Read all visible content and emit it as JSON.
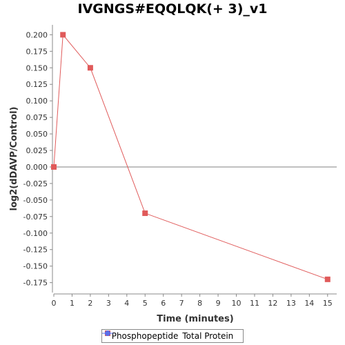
{
  "chart_data": {
    "type": "line",
    "title": "IVGNGS#EQQLQK(+ 3)_v1",
    "xlabel": "Time (minutes)",
    "ylabel": "log2(dDAVP/Control)",
    "xlim": [
      0,
      15.5
    ],
    "ylim": [
      -0.19,
      0.215
    ],
    "x_ticks": [
      0,
      1,
      2,
      3,
      4,
      5,
      6,
      7,
      8,
      9,
      10,
      11,
      12,
      13,
      14,
      15
    ],
    "y_ticks": [
      "0.200",
      "0.175",
      "0.150",
      "0.125",
      "0.100",
      "0.075",
      "0.050",
      "0.025",
      "0.000",
      "-0.025",
      "-0.050",
      "-0.075",
      "-0.100",
      "-0.125",
      "-0.150",
      "-0.175"
    ],
    "y_tick_values": [
      0.2,
      0.175,
      0.15,
      0.125,
      0.1,
      0.075,
      0.05,
      0.025,
      0.0,
      -0.025,
      -0.05,
      -0.075,
      -0.1,
      -0.125,
      -0.15,
      -0.175
    ],
    "grid": false,
    "legend_position": "bottom",
    "series": [
      {
        "name": "Phosphopeptide",
        "color": "#e05a5a",
        "marker": "square",
        "x": [
          0,
          0.5,
          2,
          5,
          15
        ],
        "y": [
          0.0,
          0.2,
          0.15,
          -0.07,
          -0.17
        ]
      },
      {
        "name": "Total Protein",
        "color": "#5b6ee8",
        "marker": "circle",
        "x": [],
        "y": []
      }
    ]
  }
}
